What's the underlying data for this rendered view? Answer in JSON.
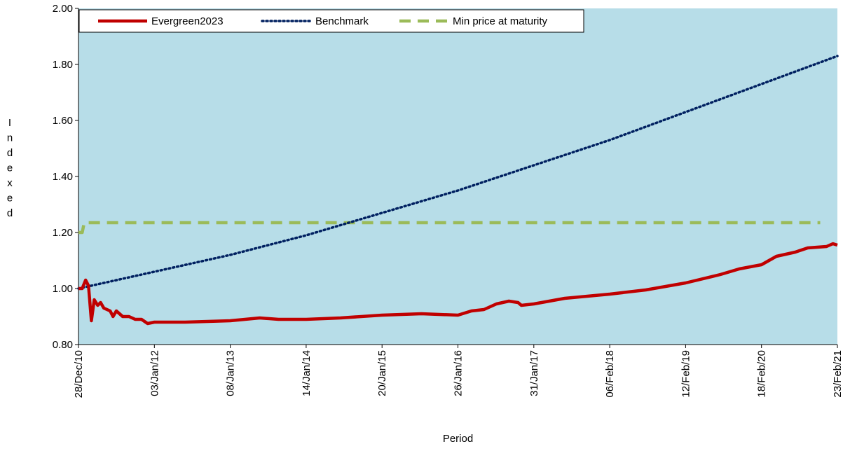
{
  "chart_data": {
    "type": "line",
    "y_label": "Indexed",
    "x_label": "Period",
    "xlim": [
      "28/Dec/10",
      "23/Feb/21"
    ],
    "xticks": [
      "28/Dec/10",
      "03/Jan/12",
      "08/Jan/13",
      "14/Jan/14",
      "20/Jan/15",
      "26/Jan/16",
      "31/Jan/17",
      "06/Feb/18",
      "12/Feb/19",
      "18/Feb/20",
      "23/Feb/21"
    ],
    "ylim": [
      0.8,
      2.0
    ],
    "yticks": [
      {
        "value": 0.8,
        "label": "0.80"
      },
      {
        "value": 1.0,
        "label": "1.00"
      },
      {
        "value": 1.2,
        "label": "1.20"
      },
      {
        "value": 1.4,
        "label": "1.40"
      },
      {
        "value": 1.6,
        "label": "1.60"
      },
      {
        "value": 1.8,
        "label": "1.80"
      },
      {
        "value": 2.0,
        "label": "2.00"
      }
    ],
    "background": "#b7dde8",
    "series": [
      {
        "name": "Evergreen2023",
        "color": "#c00000",
        "style": "solid",
        "x": [
          "28/Dec/10",
          "15/Jan/11",
          "01/Feb/11",
          "15/Feb/11",
          "01/Mar/11",
          "15/Mar/11",
          "01/Apr/11",
          "15/Apr/11",
          "01/May/11",
          "01/Jun/11",
          "15/Jun/11",
          "01/Jul/11",
          "01/Aug/11",
          "01/Sep/11",
          "01/Oct/11",
          "01/Nov/11",
          "01/Dec/11",
          "03/Jan/12",
          "01/Jun/12",
          "08/Jan/13",
          "01/Jun/13",
          "01/Sep/13",
          "14/Jan/14",
          "01/Jul/14",
          "20/Jan/15",
          "01/Aug/15",
          "26/Jan/16",
          "01/Apr/16",
          "01/Jun/16",
          "01/Aug/16",
          "01/Oct/16",
          "15/Nov/16",
          "01/Dec/16",
          "31/Jan/17",
          "01/Jul/17",
          "06/Feb/18",
          "01/Aug/18",
          "12/Feb/19",
          "01/Aug/19",
          "01/Nov/19",
          "18/Feb/20",
          "01/May/20",
          "01/Aug/20",
          "01/Oct/20",
          "01/Jan/21",
          "01/Feb/21",
          "23/Feb/21"
        ],
        "values": [
          1.0,
          1.0,
          1.03,
          1.01,
          0.885,
          0.96,
          0.94,
          0.95,
          0.93,
          0.92,
          0.9,
          0.92,
          0.9,
          0.9,
          0.89,
          0.89,
          0.875,
          0.88,
          0.88,
          0.885,
          0.895,
          0.89,
          0.89,
          0.895,
          0.905,
          0.91,
          0.905,
          0.92,
          0.925,
          0.945,
          0.955,
          0.95,
          0.94,
          0.945,
          0.965,
          0.98,
          0.995,
          1.02,
          1.05,
          1.07,
          1.085,
          1.115,
          1.13,
          1.145,
          1.15,
          1.16,
          1.155
        ]
      },
      {
        "name": "Benchmark",
        "color": "#002060",
        "style": "dotted",
        "x": [
          "28/Dec/10",
          "03/Jan/12",
          "08/Jan/13",
          "14/Jan/14",
          "20/Jan/15",
          "26/Jan/16",
          "31/Jan/17",
          "06/Feb/18",
          "12/Feb/19",
          "18/Feb/20",
          "23/Feb/21"
        ],
        "values": [
          1.0,
          1.06,
          1.12,
          1.19,
          1.27,
          1.35,
          1.44,
          1.53,
          1.63,
          1.73,
          1.83
        ]
      },
      {
        "name": "Min price at maturity",
        "color": "#9bbb59",
        "style": "dashed",
        "x": [
          "28/Dec/10",
          "15/Jan/11",
          "25/Jan/11",
          "01/Dec/20"
        ],
        "values": [
          1.2,
          1.2,
          1.235,
          1.235
        ]
      }
    ]
  }
}
